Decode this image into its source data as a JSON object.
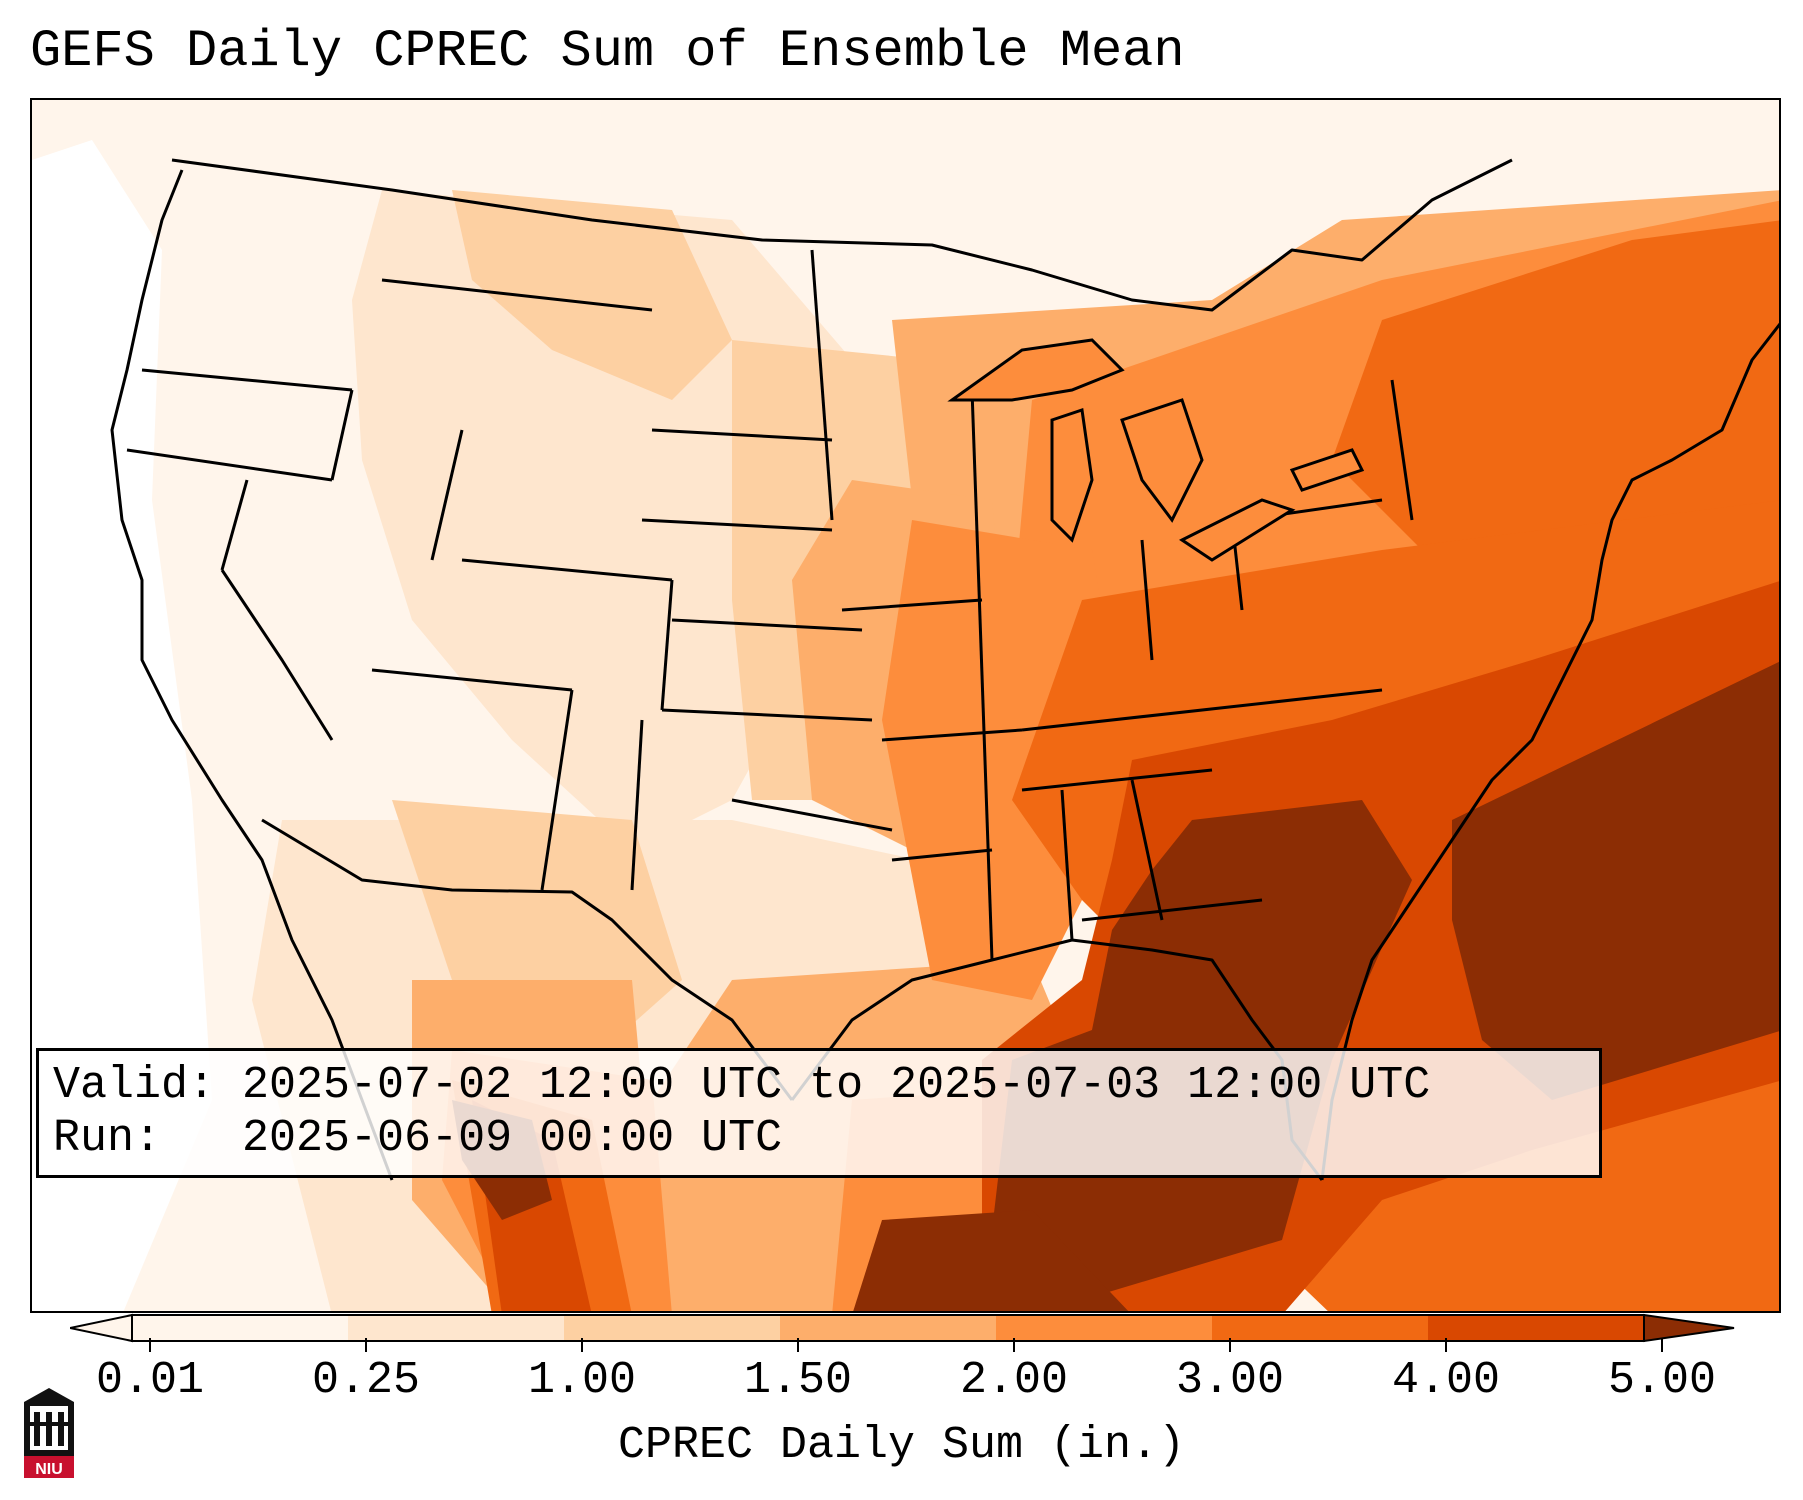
{
  "title": "GEFS Daily CPREC Sum of Ensemble Mean",
  "info": {
    "valid_line": "Valid: 2025-07-02 12:00 UTC to 2025-07-03 12:00 UTC",
    "run_line": "Run:   2025-06-09 00:00 UTC"
  },
  "colorbar": {
    "label": "CPREC Daily Sum (in.)",
    "ticks": [
      "0.01",
      "0.25",
      "1.00",
      "1.50",
      "2.00",
      "3.00",
      "4.00",
      "5.00"
    ],
    "colors": [
      "#fff5eb",
      "#fee6ce",
      "#fdd0a2",
      "#fdae6b",
      "#fd8d3c",
      "#f16913",
      "#d94801",
      "#8c2d04"
    ]
  },
  "map": {
    "region": "Continental United States",
    "colors": {
      "none": "#fff5eb",
      "trace": "#fee6ce",
      "light": "#fdd0a2",
      "moderate": "#fdae6b",
      "heavy": "#fd8d3c",
      "very_heavy": "#f16913",
      "extreme": "#d94801",
      "max": "#8c2d04"
    }
  },
  "logo": {
    "name": "university-seal-icon",
    "text": "NIU",
    "color": "#c8102e"
  }
}
